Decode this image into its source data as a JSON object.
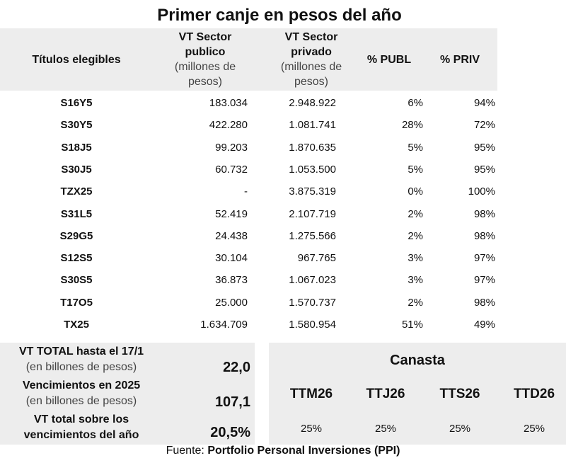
{
  "title": "Primer canje en pesos del año",
  "header": {
    "col0": "Títulos elegibles",
    "col1_bold": "VT Sector publico",
    "col1_sub": "(millones de pesos)",
    "col2_bold": "VT Sector privado",
    "col2_sub": "(millones de pesos)",
    "col3": "% PUBL",
    "col4": "% PRIV"
  },
  "rows": [
    [
      "S16Y5",
      "183.034",
      "2.948.922",
      "6%",
      "94%"
    ],
    [
      "S30Y5",
      "422.280",
      "1.081.741",
      "28%",
      "72%"
    ],
    [
      "S18J5",
      "99.203",
      "1.870.635",
      "5%",
      "95%"
    ],
    [
      "S30J5",
      "60.732",
      "1.053.500",
      "5%",
      "95%"
    ],
    [
      "TZX25",
      "-",
      "3.875.319",
      "0%",
      "100%"
    ],
    [
      "S31L5",
      "52.419",
      "2.107.719",
      "2%",
      "98%"
    ],
    [
      "S29G5",
      "24.438",
      "1.275.566",
      "2%",
      "98%"
    ],
    [
      "S12S5",
      "30.104",
      "967.765",
      "3%",
      "97%"
    ],
    [
      "S30S5",
      "36.873",
      "1.067.023",
      "3%",
      "97%"
    ],
    [
      "T17O5",
      "25.000",
      "1.570.737",
      "2%",
      "98%"
    ],
    [
      "TX25",
      "1.634.709",
      "1.580.954",
      "51%",
      "49%"
    ]
  ],
  "summary": [
    {
      "bold": "VT TOTAL hasta el 17/1",
      "sub": "(en billones de pesos)",
      "value": "22,0"
    },
    {
      "bold": "Vencimientos en 2025",
      "sub": "(en billones de pesos)",
      "value": "107,1"
    },
    {
      "bold": "VT total sobre los vencimientos del año",
      "sub": "",
      "value": "20,5%"
    }
  ],
  "canasta": {
    "title": "Canasta",
    "items": [
      {
        "ticker": "TTM26",
        "pct": "25%"
      },
      {
        "ticker": "TTJ26",
        "pct": "25%"
      },
      {
        "ticker": "TTS26",
        "pct": "25%"
      },
      {
        "ticker": "TTD26",
        "pct": "25%"
      }
    ]
  },
  "footer": {
    "label": "Fuente:",
    "source": "Portfolio Personal Inversiones (PPI)"
  }
}
